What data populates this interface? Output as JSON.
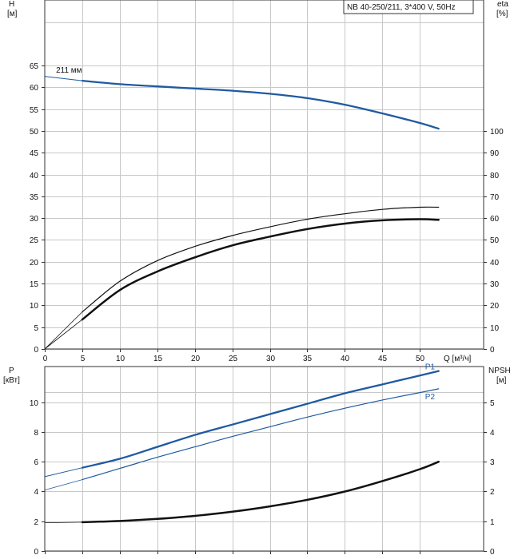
{
  "title_box": "NB 40-250/211, 3*400 V, 50Hz",
  "colors": {
    "blue": "#1f5aa0",
    "black": "#111111",
    "grid": "#c8c8c8"
  },
  "chart_data": [
    {
      "type": "line",
      "name": "top",
      "xlabel": "Q [м³/ч]",
      "xlim": [
        0,
        58.5
      ],
      "xticks": [
        0,
        5,
        10,
        15,
        20,
        25,
        30,
        35,
        40,
        45,
        50
      ],
      "ylabel_left": {
        "name": "H",
        "unit": "[м]"
      },
      "ylim_left": [
        0,
        80
      ],
      "yticks_left": [
        0,
        5,
        10,
        15,
        20,
        25,
        30,
        35,
        40,
        45,
        50,
        55,
        60,
        65
      ],
      "ylabel_right": {
        "name": "eta",
        "unit": "[%]"
      },
      "ylim_right": [
        0,
        160
      ],
      "yticks_right": [
        0,
        10,
        20,
        30,
        40,
        50,
        60,
        70,
        80,
        90,
        100
      ],
      "grid": true,
      "annotations": [
        {
          "text": "211 мм",
          "x": 1.5,
          "y": 63.3
        }
      ],
      "series": [
        {
          "axis": "left",
          "color": "#1f5aa0",
          "width": 1,
          "x": [
            0,
            5
          ],
          "y": [
            62.5,
            61.5
          ]
        },
        {
          "axis": "left",
          "color": "#1f5aa0",
          "width": 2.3,
          "x": [
            5,
            10,
            15,
            20,
            25,
            30,
            35,
            40,
            45,
            50,
            52.5
          ],
          "y": [
            61.5,
            60.7,
            60.2,
            59.7,
            59.2,
            58.5,
            57.5,
            56.0,
            54.0,
            51.8,
            50.5
          ]
        },
        {
          "axis": "right",
          "color": "#111111",
          "width": 0.8,
          "x": [
            0,
            5
          ],
          "y": [
            0,
            17
          ]
        },
        {
          "axis": "right",
          "color": "#111111",
          "width": 1.2,
          "x": [
            5,
            10,
            15,
            20,
            25,
            30,
            35,
            40,
            45,
            50,
            52.5
          ],
          "y": [
            17,
            31,
            40.5,
            47,
            52,
            56,
            59.5,
            62,
            64,
            65,
            65
          ]
        },
        {
          "axis": "right",
          "color": "#111111",
          "width": 0.8,
          "x": [
            0,
            5
          ],
          "y": [
            0,
            13.5
          ]
        },
        {
          "axis": "right",
          "color": "#111111",
          "width": 2.5,
          "x": [
            5,
            10,
            15,
            20,
            25,
            30,
            35,
            40,
            45,
            50,
            52.5
          ],
          "y": [
            13.5,
            27,
            35.5,
            42,
            47.5,
            51.5,
            55,
            57.5,
            59,
            59.5,
            59.2
          ]
        }
      ]
    },
    {
      "type": "line",
      "name": "bottom",
      "xlim": [
        0,
        58.5
      ],
      "ylabel_left": {
        "name": "P",
        "unit": "[кВт]"
      },
      "ylim_left": [
        0,
        12.4
      ],
      "yticks_left": [
        0,
        2,
        4,
        6,
        8,
        10
      ],
      "ylabel_right": {
        "name": "NPSH",
        "unit": "[м]"
      },
      "ylim_right": [
        0,
        6.2
      ],
      "yticks_right": [
        0,
        1,
        2,
        3,
        4,
        5
      ],
      "grid": true,
      "annotations": [
        {
          "text": "P1",
          "x": 50.7,
          "y": 12.2,
          "color": "#1f5aa0"
        },
        {
          "text": "P2",
          "x": 50.7,
          "y": 10.2,
          "color": "#1f5aa0"
        }
      ],
      "series": [
        {
          "axis": "left",
          "color": "#1f5aa0",
          "width": 1,
          "x": [
            0,
            5
          ],
          "y": [
            5.0,
            5.6
          ]
        },
        {
          "axis": "left",
          "color": "#1f5aa0",
          "width": 2.3,
          "x": [
            5,
            10,
            15,
            20,
            25,
            30,
            35,
            40,
            45,
            50,
            52.5
          ],
          "y": [
            5.6,
            6.2,
            7.0,
            7.8,
            8.5,
            9.2,
            9.9,
            10.6,
            11.2,
            11.8,
            12.1
          ]
        },
        {
          "axis": "left",
          "color": "#1f5aa0",
          "width": 0.8,
          "x": [
            0,
            5
          ],
          "y": [
            4.1,
            4.8
          ]
        },
        {
          "axis": "left",
          "color": "#1f5aa0",
          "width": 1.2,
          "x": [
            5,
            10,
            15,
            20,
            25,
            30,
            35,
            40,
            45,
            50,
            52.5
          ],
          "y": [
            4.8,
            5.55,
            6.3,
            7.0,
            7.7,
            8.35,
            9.0,
            9.6,
            10.15,
            10.65,
            10.9
          ]
        },
        {
          "axis": "right",
          "color": "#111111",
          "width": 0.8,
          "x": [
            0,
            5
          ],
          "y": [
            0.95,
            0.97
          ]
        },
        {
          "axis": "right",
          "color": "#111111",
          "width": 2.5,
          "x": [
            5,
            10,
            15,
            20,
            25,
            30,
            35,
            40,
            45,
            50,
            52.5
          ],
          "y": [
            0.97,
            1.01,
            1.08,
            1.18,
            1.32,
            1.5,
            1.72,
            2.0,
            2.35,
            2.75,
            3.0
          ]
        }
      ]
    }
  ]
}
